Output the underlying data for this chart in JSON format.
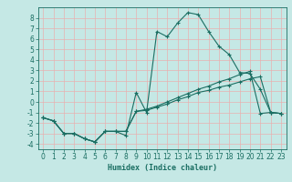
{
  "title": "",
  "xlabel": "Humidex (Indice chaleur)",
  "bg_color": "#c5e8e5",
  "grid_color": "#e8b0b0",
  "line_color": "#1a6e62",
  "xlim": [
    -0.5,
    23.5
  ],
  "ylim": [
    -4.5,
    9.0
  ],
  "xticks": [
    0,
    1,
    2,
    3,
    4,
    5,
    6,
    7,
    8,
    9,
    10,
    11,
    12,
    13,
    14,
    15,
    16,
    17,
    18,
    19,
    20,
    21,
    22,
    23
  ],
  "yticks": [
    -4,
    -3,
    -2,
    -1,
    0,
    1,
    2,
    3,
    4,
    5,
    6,
    7,
    8
  ],
  "series1_x": [
    0,
    1,
    2,
    3,
    4,
    5,
    6,
    7,
    8,
    9,
    10,
    11,
    12,
    13,
    14,
    15,
    16,
    17,
    18,
    19,
    20,
    21,
    22,
    23
  ],
  "series1_y": [
    -1.5,
    -1.8,
    -3.0,
    -3.0,
    -3.5,
    -3.8,
    -2.8,
    -2.8,
    -3.2,
    0.9,
    -1.0,
    6.7,
    6.2,
    7.5,
    8.5,
    8.3,
    6.7,
    5.3,
    4.5,
    2.8,
    2.7,
    1.2,
    -1.0,
    -1.1
  ],
  "series2_x": [
    0,
    1,
    2,
    3,
    4,
    5,
    6,
    7,
    8,
    9,
    10,
    11,
    12,
    13,
    14,
    15,
    16,
    17,
    18,
    19,
    20,
    21,
    22,
    23
  ],
  "series2_y": [
    -1.5,
    -1.8,
    -3.0,
    -3.0,
    -3.5,
    -3.8,
    -2.8,
    -2.8,
    -2.8,
    -0.9,
    -0.8,
    -0.5,
    -0.2,
    0.2,
    0.5,
    0.9,
    1.1,
    1.4,
    1.6,
    1.9,
    2.2,
    2.4,
    -1.0,
    -1.1
  ],
  "series3_x": [
    0,
    1,
    2,
    3,
    4,
    5,
    6,
    7,
    8,
    9,
    10,
    11,
    12,
    13,
    14,
    15,
    16,
    17,
    18,
    19,
    20,
    21,
    22,
    23
  ],
  "series3_y": [
    -1.5,
    -1.8,
    -3.0,
    -3.0,
    -3.5,
    -3.8,
    -2.8,
    -2.8,
    -2.8,
    -0.9,
    -0.7,
    -0.4,
    -0.0,
    0.4,
    0.8,
    1.2,
    1.5,
    1.9,
    2.2,
    2.6,
    2.9,
    -1.1,
    -1.0,
    -1.1
  ],
  "xlabel_fontsize": 6.0,
  "tick_fontsize": 5.5
}
